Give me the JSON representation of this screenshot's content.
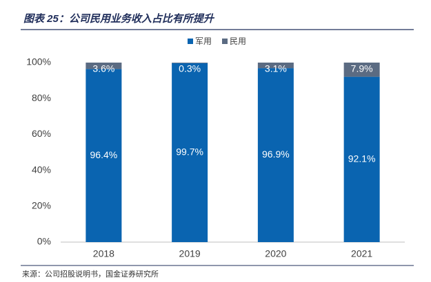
{
  "chart_data": {
    "type": "stacked_bar",
    "title": "图表 25：公司民用业务收入占比有所提升",
    "source": "来源：公司招股说明书，国金证券研究所",
    "categories": [
      "2018",
      "2019",
      "2020",
      "2021"
    ],
    "series": [
      {
        "name": "军用",
        "color": "#0a64b0",
        "values": [
          96.4,
          99.7,
          96.9,
          92.1
        ],
        "value_labels": [
          "96.4%",
          "99.7%",
          "96.9%",
          "92.1%"
        ]
      },
      {
        "name": "民用",
        "color": "#5b6b82",
        "values": [
          3.6,
          0.3,
          3.1,
          7.9
        ],
        "value_labels": [
          "3.6%",
          "0.3%",
          "3.1%",
          "7.9%"
        ]
      }
    ],
    "ylim": [
      0,
      100
    ],
    "yticks": [
      {
        "value": 0,
        "label": "0%"
      },
      {
        "value": 20,
        "label": "20%"
      },
      {
        "value": 40,
        "label": "40%"
      },
      {
        "value": 60,
        "label": "60%"
      },
      {
        "value": 80,
        "label": "80%"
      },
      {
        "value": 100,
        "label": "100%"
      }
    ],
    "legend": "top"
  }
}
